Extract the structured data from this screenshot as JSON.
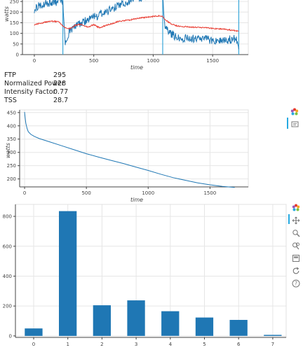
{
  "stats": {
    "rows": [
      {
        "label": "FTP",
        "value": "295"
      },
      {
        "label": "Normalized Power",
        "value": "228"
      },
      {
        "label": "Intensity Factor",
        "value": "0.77"
      },
      {
        "label": "TSS",
        "value": "28.7"
      }
    ]
  },
  "toolbar_icons": [
    "bokeh-logo-icon",
    "hover-tool-icon",
    "pan-icon",
    "box-zoom-icon",
    "wheel-zoom-icon",
    "box-select-icon",
    "reset-icon",
    "help-icon"
  ],
  "colors": {
    "power": "#1f77b4",
    "hr": "#e8392e",
    "marker": "#39a7d9",
    "bar": "#1f77b4",
    "grid": "#e6e6e6"
  },
  "chart_data": [
    {
      "type": "line",
      "xlabel": "time",
      "ylabel": "watts",
      "xlim": [
        -100,
        1800
      ],
      "ylim": [
        0,
        290
      ],
      "xticks": [
        0,
        500,
        1000,
        1500
      ],
      "yticks": [
        0,
        50,
        100,
        150,
        200,
        250
      ],
      "series": [
        {
          "values_x": [
            0,
            60,
            120,
            200,
            240,
            260,
            300,
            400,
            500,
            600,
            700,
            800,
            880,
            900,
            1000,
            1060,
            1080,
            1100,
            1200,
            1300,
            1400,
            1500,
            1600,
            1700,
            1720
          ],
          "values_y": [
            215,
            235,
            245,
            250,
            245,
            40,
            115,
            150,
            175,
            200,
            225,
            255,
            270,
            260,
            285,
            290,
            280,
            120,
            80,
            75,
            72,
            70,
            68,
            75,
            25
          ]
        },
        {
          "values_x": [
            0,
            50,
            100,
            150,
            200,
            260,
            300,
            350,
            400,
            450,
            500,
            550,
            600,
            650,
            700,
            750,
            800,
            850,
            900,
            950,
            1000,
            1050,
            1080,
            1100,
            1150,
            1200,
            1300,
            1400,
            1500,
            1600,
            1700,
            1720
          ],
          "values_y": [
            140,
            148,
            153,
            157,
            155,
            125,
            122,
            140,
            142,
            128,
            142,
            125,
            137,
            145,
            155,
            160,
            163,
            168,
            173,
            176,
            180,
            182,
            180,
            165,
            145,
            135,
            130,
            127,
            124,
            120,
            112,
            110
          ]
        }
      ],
      "markers_x": [
        240,
        1080,
        1720
      ]
    },
    {
      "type": "line",
      "xlabel": "time",
      "ylabel": "watts",
      "xlim": [
        -40,
        1810
      ],
      "ylim": [
        170,
        460
      ],
      "xticks": [
        0,
        500,
        1000,
        1500
      ],
      "yticks": [
        200,
        250,
        300,
        350,
        400,
        450
      ],
      "series": [
        {
          "values_x": [
            0,
            5,
            10,
            20,
            30,
            50,
            80,
            120,
            200,
            300,
            400,
            500,
            600,
            700,
            800,
            900,
            1000,
            1100,
            1200,
            1300,
            1400,
            1500,
            1600,
            1700
          ],
          "values_y": [
            452,
            430,
            410,
            390,
            378,
            368,
            360,
            352,
            340,
            325,
            310,
            295,
            282,
            270,
            258,
            245,
            232,
            218,
            205,
            195,
            185,
            178,
            172,
            168
          ]
        }
      ]
    },
    {
      "type": "bar",
      "categories": [
        "0",
        "1",
        "2",
        "3",
        "4",
        "5",
        "6",
        "7"
      ],
      "values": [
        50,
        835,
        205,
        238,
        165,
        123,
        107,
        7
      ],
      "ylim": [
        -10,
        880
      ],
      "yticks": [
        0,
        200,
        400,
        600,
        800
      ]
    }
  ]
}
